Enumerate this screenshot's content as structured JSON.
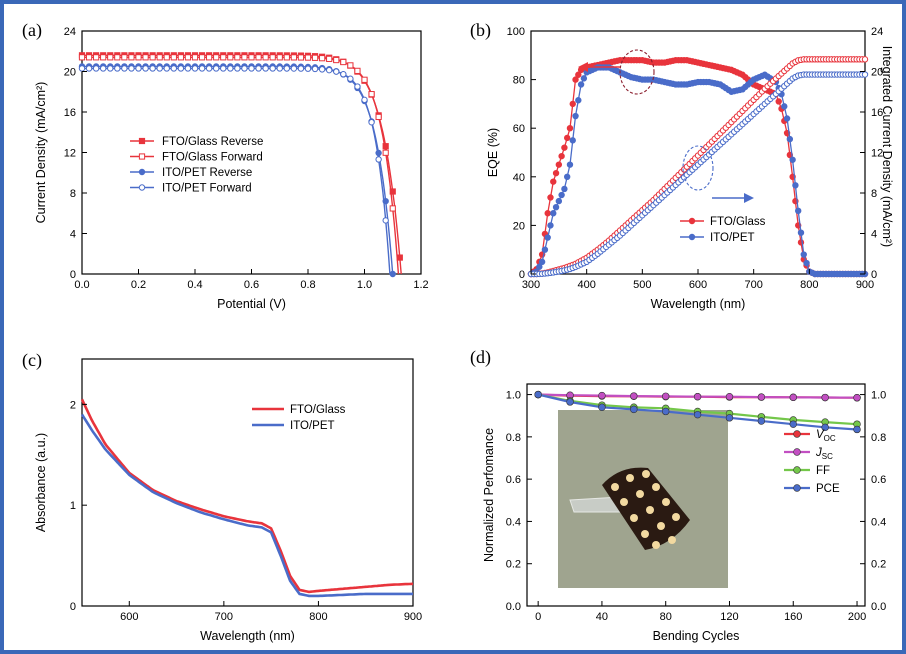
{
  "colors": {
    "red": "#e8343c",
    "blue": "#4a6cc9",
    "magenta": "#c24fc2",
    "green": "#74c74a",
    "frame": "#3a68b8"
  },
  "chart_data": [
    {
      "panel": "(a)",
      "type": "line",
      "xlabel": "Potential (V)",
      "ylabel": "Current Density (mA/cm²)",
      "xlim": [
        0,
        1.2
      ],
      "ylim": [
        0,
        24
      ],
      "xticks": [
        "0.0",
        "0.2",
        "0.4",
        "0.6",
        "0.8",
        "1.0",
        "1.2"
      ],
      "yticks": [
        "0",
        "4",
        "8",
        "12",
        "16",
        "20",
        "24"
      ],
      "legend_position": "center-left",
      "series": [
        {
          "name": "FTO/Glass Reverse",
          "color": "red",
          "marker": "filled-square",
          "jsc": 21.6,
          "voc": 1.13,
          "n": 1.6
        },
        {
          "name": "FTO/Glass Forward",
          "color": "red",
          "marker": "open-square",
          "jsc": 21.4,
          "voc": 1.12,
          "n": 2.0
        },
        {
          "name": "ITO/PET Reverse",
          "color": "blue",
          "marker": "filled-circle",
          "jsc": 20.5,
          "voc": 1.1,
          "n": 1.8
        },
        {
          "name": "ITO/PET Forward",
          "color": "blue",
          "marker": "open-circle",
          "jsc": 20.3,
          "voc": 1.09,
          "n": 2.3
        }
      ]
    },
    {
      "panel": "(b)",
      "type": "line",
      "xlabel": "Wavelength (nm)",
      "ylabel": "EQE (%)",
      "y2label": "Integrated Current Density (mA/cm²)",
      "xlim": [
        300,
        900
      ],
      "ylim": [
        0,
        100
      ],
      "y2lim": [
        0,
        24
      ],
      "xticks": [
        "300",
        "400",
        "500",
        "600",
        "700",
        "800",
        "900"
      ],
      "yticks": [
        "0",
        "20",
        "40",
        "60",
        "80",
        "100"
      ],
      "y2ticks": [
        "0",
        "4",
        "8",
        "12",
        "16",
        "20",
        "24"
      ],
      "legend_position": "bottom-right",
      "x": [
        300,
        310,
        320,
        330,
        340,
        350,
        360,
        370,
        380,
        390,
        400,
        420,
        440,
        460,
        480,
        500,
        520,
        540,
        560,
        580,
        600,
        620,
        640,
        660,
        680,
        700,
        720,
        740,
        750,
        760,
        770,
        780,
        790,
        800,
        810,
        820,
        840,
        860,
        880,
        900
      ],
      "series": [
        {
          "name": "FTO/Glass",
          "color": "red",
          "axis": "left",
          "values": [
            0,
            2,
            8,
            25,
            38,
            45,
            52,
            60,
            80,
            84,
            85,
            86,
            87,
            88,
            88,
            88,
            87,
            87,
            88,
            88,
            87,
            86,
            85,
            84,
            82,
            78,
            76,
            74,
            68,
            58,
            40,
            20,
            6,
            1,
            0,
            0,
            0,
            0,
            0,
            0
          ]
        },
        {
          "name": "ITO/PET",
          "color": "blue",
          "axis": "left",
          "values": [
            0,
            1,
            5,
            15,
            25,
            30,
            35,
            45,
            65,
            78,
            83,
            85,
            85,
            83,
            81,
            80,
            80,
            79,
            78,
            78,
            79,
            79,
            78,
            75,
            76,
            80,
            82,
            79,
            74,
            64,
            47,
            26,
            8,
            1,
            0,
            0,
            0,
            0,
            0,
            0
          ]
        },
        {
          "name": "FTO/Glass integrated",
          "color": "red",
          "axis": "right",
          "values": [
            0,
            0,
            0.05,
            0.15,
            0.3,
            0.45,
            0.6,
            0.8,
            1.0,
            1.3,
            1.6,
            2.4,
            3.3,
            4.3,
            5.3,
            6.3,
            7.3,
            8.4,
            9.5,
            10.6,
            11.7,
            12.8,
            13.9,
            15.0,
            16.1,
            17.2,
            18.3,
            19.3,
            19.8,
            20.3,
            20.8,
            21.1,
            21.2,
            21.2,
            21.2,
            21.2,
            21.2,
            21.2,
            21.2,
            21.2
          ]
        },
        {
          "name": "ITO/PET integrated",
          "color": "blue",
          "axis": "right",
          "values": [
            0,
            0,
            0.02,
            0.08,
            0.15,
            0.25,
            0.35,
            0.5,
            0.7,
            0.95,
            1.2,
            2.0,
            2.9,
            3.8,
            4.8,
            5.8,
            6.8,
            7.8,
            8.8,
            9.8,
            10.8,
            11.8,
            12.8,
            13.8,
            14.8,
            15.8,
            16.8,
            17.8,
            18.3,
            18.8,
            19.3,
            19.6,
            19.7,
            19.7,
            19.7,
            19.7,
            19.7,
            19.7,
            19.7,
            19.7
          ]
        }
      ]
    },
    {
      "panel": "(c)",
      "type": "line",
      "xlabel": "Wavelength (nm)",
      "ylabel": "Absorbance (a.u.)",
      "xlim": [
        550,
        900
      ],
      "ylim": [
        0,
        2.45
      ],
      "xticks": [
        "600",
        "700",
        "800",
        "900"
      ],
      "yticks": [
        "0",
        "1",
        "2"
      ],
      "legend_position": "top-right",
      "x": [
        550,
        560,
        575,
        600,
        625,
        650,
        675,
        700,
        725,
        740,
        750,
        760,
        770,
        780,
        790,
        800,
        825,
        850,
        875,
        900
      ],
      "series": [
        {
          "name": "FTO/Glass",
          "color": "red",
          "values": [
            2.05,
            1.85,
            1.6,
            1.32,
            1.15,
            1.04,
            0.96,
            0.89,
            0.84,
            0.82,
            0.77,
            0.55,
            0.3,
            0.16,
            0.14,
            0.15,
            0.17,
            0.19,
            0.21,
            0.22
          ]
        },
        {
          "name": "ITO/PET",
          "color": "blue",
          "values": [
            1.9,
            1.75,
            1.55,
            1.3,
            1.13,
            1.02,
            0.93,
            0.86,
            0.8,
            0.78,
            0.73,
            0.5,
            0.25,
            0.12,
            0.1,
            0.1,
            0.11,
            0.12,
            0.12,
            0.12
          ]
        }
      ]
    },
    {
      "panel": "(d)",
      "type": "line",
      "xlabel": "Bending Cycles",
      "ylabel": "Normalized Perfomance",
      "xlim": [
        -7,
        205
      ],
      "ylim": [
        0,
        1.05
      ],
      "xticks": [
        "0",
        "40",
        "80",
        "120",
        "160",
        "200"
      ],
      "yticks": [
        "0.0",
        "0.2",
        "0.4",
        "0.6",
        "0.8",
        "1.0"
      ],
      "y2ticks": [
        "0.0",
        "0.2",
        "0.4",
        "0.6",
        "0.8",
        "1.0"
      ],
      "legend_position": "right",
      "x": [
        0,
        20,
        40,
        60,
        80,
        100,
        120,
        140,
        160,
        180,
        200
      ],
      "series": [
        {
          "name": "V",
          "subscript": "OC",
          "color": "red",
          "values": [
            1.0,
            0.995,
            0.993,
            0.992,
            0.99,
            0.99,
            0.988,
            0.988,
            0.987,
            0.986,
            0.985
          ]
        },
        {
          "name": "J",
          "subscript": "SC",
          "color": "magenta",
          "values": [
            1.0,
            0.997,
            0.995,
            0.993,
            0.992,
            0.99,
            0.99,
            0.988,
            0.987,
            0.986,
            0.985
          ]
        },
        {
          "name": "FF",
          "color": "green",
          "values": [
            1.0,
            0.97,
            0.95,
            0.94,
            0.935,
            0.92,
            0.91,
            0.895,
            0.88,
            0.87,
            0.86
          ]
        },
        {
          "name": "PCE",
          "color": "blue",
          "values": [
            1.0,
            0.965,
            0.94,
            0.93,
            0.92,
            0.905,
            0.89,
            0.875,
            0.86,
            0.845,
            0.835
          ]
        }
      ]
    }
  ]
}
